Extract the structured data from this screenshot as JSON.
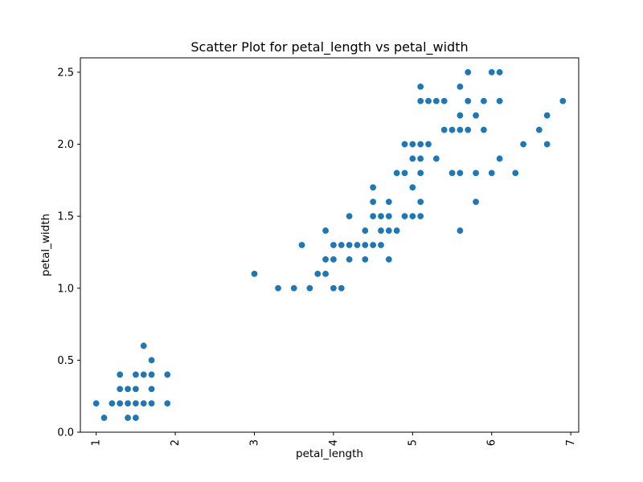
{
  "chart_data": {
    "type": "scatter",
    "title": "Scatter Plot for petal_length vs petal_width",
    "xlabel": "petal_length",
    "ylabel": "petal_width",
    "xlim": [
      0.8,
      7.1
    ],
    "ylim": [
      0.0,
      2.6
    ],
    "xticks": [
      1,
      2,
      3,
      4,
      5,
      6,
      7
    ],
    "xtick_labels": [
      "1",
      "2",
      "3",
      "4",
      "5",
      "6",
      "7"
    ],
    "yticks": [
      0.0,
      0.5,
      1.0,
      1.5,
      2.0,
      2.5
    ],
    "ytick_labels": [
      "0.0",
      "0.5",
      "1.0",
      "1.5",
      "2.0",
      "2.5"
    ],
    "grid": false,
    "color": "#1f77b4",
    "points": [
      [
        1.0,
        0.2
      ],
      [
        1.1,
        0.1
      ],
      [
        1.2,
        0.2
      ],
      [
        1.3,
        0.2
      ],
      [
        1.3,
        0.3
      ],
      [
        1.3,
        0.4
      ],
      [
        1.4,
        0.1
      ],
      [
        1.4,
        0.2
      ],
      [
        1.4,
        0.3
      ],
      [
        1.5,
        0.1
      ],
      [
        1.5,
        0.2
      ],
      [
        1.5,
        0.3
      ],
      [
        1.5,
        0.4
      ],
      [
        1.6,
        0.2
      ],
      [
        1.6,
        0.4
      ],
      [
        1.6,
        0.6
      ],
      [
        1.7,
        0.2
      ],
      [
        1.7,
        0.3
      ],
      [
        1.7,
        0.4
      ],
      [
        1.7,
        0.5
      ],
      [
        1.9,
        0.2
      ],
      [
        1.9,
        0.4
      ],
      [
        3.0,
        1.1
      ],
      [
        3.3,
        1.0
      ],
      [
        3.5,
        1.0
      ],
      [
        3.6,
        1.3
      ],
      [
        3.7,
        1.0
      ],
      [
        3.8,
        1.1
      ],
      [
        3.9,
        1.1
      ],
      [
        3.9,
        1.2
      ],
      [
        3.9,
        1.4
      ],
      [
        4.0,
        1.0
      ],
      [
        4.0,
        1.2
      ],
      [
        4.0,
        1.3
      ],
      [
        4.1,
        1.0
      ],
      [
        4.1,
        1.3
      ],
      [
        4.2,
        1.2
      ],
      [
        4.2,
        1.3
      ],
      [
        4.2,
        1.5
      ],
      [
        4.3,
        1.3
      ],
      [
        4.4,
        1.2
      ],
      [
        4.4,
        1.3
      ],
      [
        4.4,
        1.4
      ],
      [
        4.5,
        1.3
      ],
      [
        4.5,
        1.5
      ],
      [
        4.5,
        1.6
      ],
      [
        4.5,
        1.7
      ],
      [
        4.6,
        1.3
      ],
      [
        4.6,
        1.4
      ],
      [
        4.6,
        1.5
      ],
      [
        4.7,
        1.2
      ],
      [
        4.7,
        1.4
      ],
      [
        4.7,
        1.5
      ],
      [
        4.7,
        1.6
      ],
      [
        4.8,
        1.4
      ],
      [
        4.8,
        1.8
      ],
      [
        4.9,
        1.5
      ],
      [
        4.9,
        1.8
      ],
      [
        4.9,
        2.0
      ],
      [
        5.0,
        1.5
      ],
      [
        5.0,
        1.7
      ],
      [
        5.0,
        1.9
      ],
      [
        5.0,
        2.0
      ],
      [
        5.1,
        1.5
      ],
      [
        5.1,
        1.6
      ],
      [
        5.1,
        1.8
      ],
      [
        5.1,
        1.9
      ],
      [
        5.1,
        2.0
      ],
      [
        5.1,
        2.3
      ],
      [
        5.1,
        2.4
      ],
      [
        5.2,
        2.0
      ],
      [
        5.2,
        2.3
      ],
      [
        5.3,
        1.9
      ],
      [
        5.3,
        2.3
      ],
      [
        5.4,
        2.1
      ],
      [
        5.4,
        2.3
      ],
      [
        5.5,
        1.8
      ],
      [
        5.5,
        2.1
      ],
      [
        5.6,
        1.4
      ],
      [
        5.6,
        1.8
      ],
      [
        5.6,
        2.1
      ],
      [
        5.6,
        2.2
      ],
      [
        5.6,
        2.4
      ],
      [
        5.7,
        2.1
      ],
      [
        5.7,
        2.3
      ],
      [
        5.7,
        2.5
      ],
      [
        5.8,
        1.6
      ],
      [
        5.8,
        1.8
      ],
      [
        5.8,
        2.2
      ],
      [
        5.9,
        2.1
      ],
      [
        5.9,
        2.3
      ],
      [
        6.0,
        1.8
      ],
      [
        6.0,
        2.5
      ],
      [
        6.1,
        1.9
      ],
      [
        6.1,
        2.3
      ],
      [
        6.1,
        2.5
      ],
      [
        6.3,
        1.8
      ],
      [
        6.4,
        2.0
      ],
      [
        6.6,
        2.1
      ],
      [
        6.7,
        2.0
      ],
      [
        6.7,
        2.2
      ],
      [
        6.9,
        2.3
      ]
    ]
  }
}
